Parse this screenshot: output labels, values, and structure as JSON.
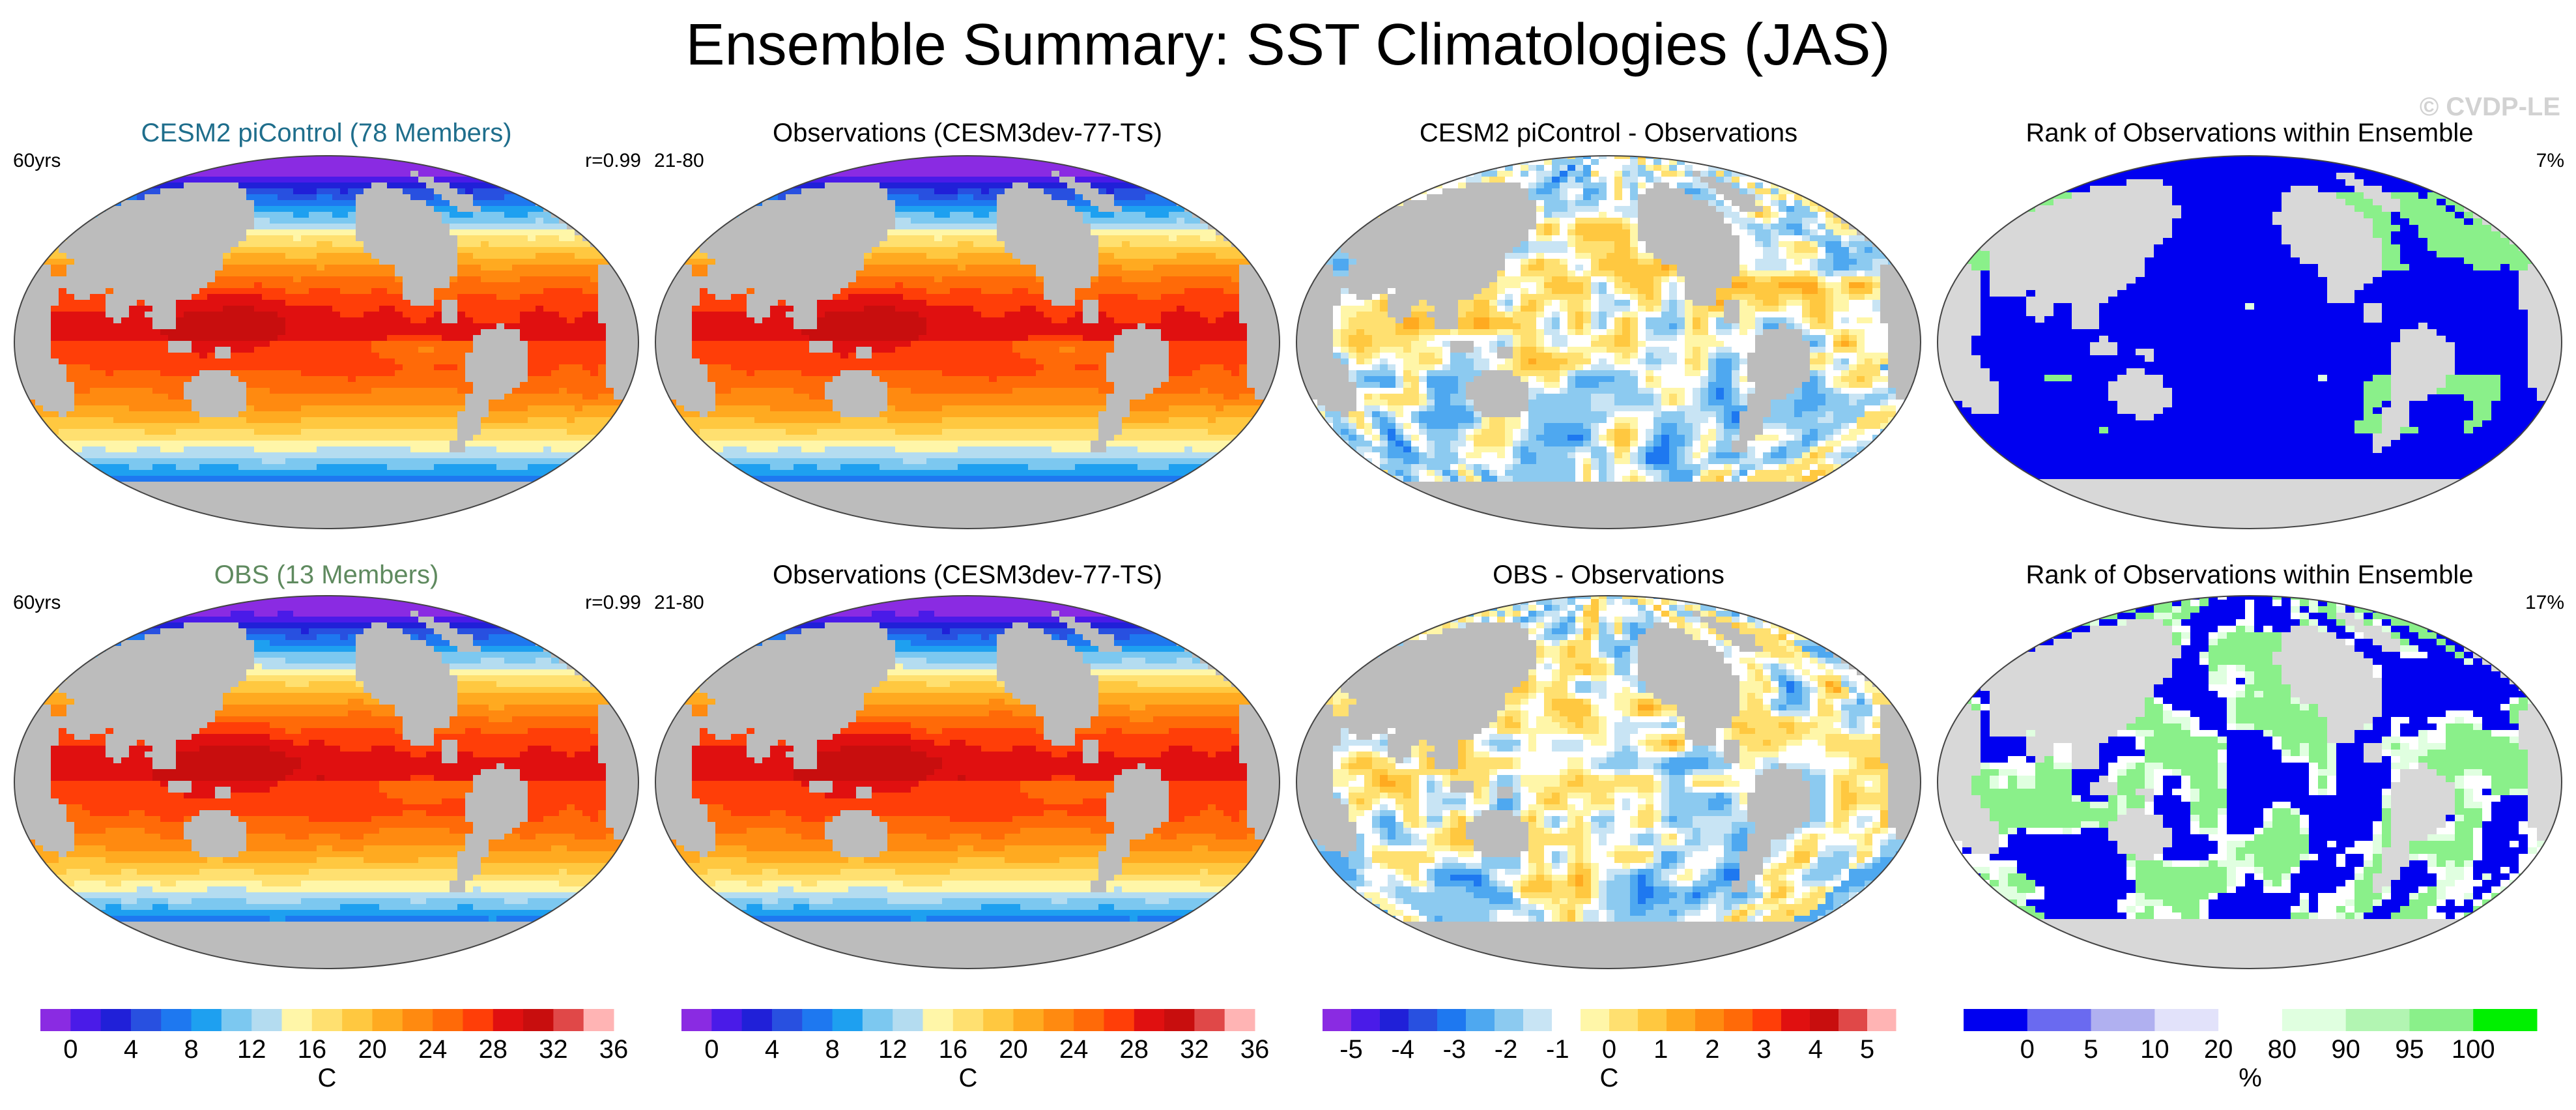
{
  "title": "Ensemble Summary: SST Climatologies (JAS)",
  "watermark": "© CVDP-LE",
  "palettes": {
    "sst": [
      "#8a2be2",
      "#4a1be8",
      "#2020d8",
      "#2850e0",
      "#1e78f0",
      "#1ea0f0",
      "#7cc8f0",
      "#b4dcf0",
      "#fff6a8",
      "#ffe070",
      "#ffc840",
      "#ffaa20",
      "#ff8a10",
      "#ff6a08",
      "#ff3e08",
      "#e01010",
      "#c80e0e",
      "#e04848",
      "#ffb4b4"
    ],
    "diff": [
      "#8a2be2",
      "#4a1be8",
      "#2020d8",
      "#2850e0",
      "#1e78f0",
      "#4ea8f0",
      "#8ccaf0",
      "#c8e4f4",
      "#ffffff",
      "#fff6a8",
      "#ffe070",
      "#ffc840",
      "#ffaa20",
      "#ff8a10",
      "#ff6a08",
      "#ff3e08",
      "#e01010",
      "#c80e0e",
      "#e04848",
      "#ffb4b4"
    ],
    "rank": [
      "#0000f0",
      "#6a6af0",
      "#b0b0f0",
      "#e2e2fa",
      "#ffffff",
      "#e0ffe0",
      "#b2f5b2",
      "#8af08a",
      "#00f000"
    ]
  },
  "panels": [
    {
      "title": "CESM2 piControl (78 Members)",
      "title_color": "#1f6e8c",
      "left_text": "60yrs",
      "right_text": "r=0.99",
      "kind": "sst"
    },
    {
      "title": "Observations (CESM3dev-77-TS)",
      "title_color": "#000000",
      "left_text": "21-80",
      "right_text": "",
      "kind": "sst"
    },
    {
      "title": "CESM2 piControl - Observations",
      "title_color": "#000000",
      "left_text": "",
      "right_text": "",
      "kind": "diff"
    },
    {
      "title": "Rank of Observations within Ensemble",
      "title_color": "#000000",
      "left_text": "",
      "right_text": "7%",
      "kind": "rank"
    },
    {
      "title": "OBS (13 Members)",
      "title_color": "#5f8a5f",
      "left_text": "60yrs",
      "right_text": "r=0.99",
      "kind": "sst"
    },
    {
      "title": "Observations (CESM3dev-77-TS)",
      "title_color": "#000000",
      "left_text": "21-80",
      "right_text": "",
      "kind": "sst"
    },
    {
      "title": "OBS - Observations",
      "title_color": "#000000",
      "left_text": "",
      "right_text": "",
      "kind": "diff"
    },
    {
      "title": "Rank of Observations within Ensemble",
      "title_color": "#000000",
      "left_text": "",
      "right_text": "17%",
      "kind": "rank"
    }
  ],
  "colorbars": [
    {
      "kind": "sst",
      "units": "C",
      "ticks": [
        "0",
        "4",
        "8",
        "12",
        "16",
        "20",
        "24",
        "28",
        "32",
        "36"
      ]
    },
    {
      "kind": "sst",
      "units": "C",
      "ticks": [
        "0",
        "4",
        "8",
        "12",
        "16",
        "20",
        "24",
        "28",
        "32",
        "36"
      ]
    },
    {
      "kind": "diff",
      "units": "C",
      "ticks": [
        "-5",
        "-4",
        "-3",
        "-2",
        "-1",
        "0",
        "1",
        "2",
        "3",
        "4",
        "5"
      ]
    },
    {
      "kind": "rank",
      "units": "%",
      "ticks": [
        "0",
        "5",
        "10",
        "20",
        "80",
        "90",
        "95",
        "100"
      ]
    }
  ],
  "chart_data": {
    "type": "heatmap",
    "title": "Ensemble Summary: SST Climatologies (JAS)",
    "units": {
      "sst": "C",
      "diff": "C",
      "rank": "%"
    },
    "sst_levels": [
      0,
      2,
      4,
      6,
      8,
      10,
      12,
      14,
      16,
      18,
      20,
      22,
      24,
      26,
      28,
      30,
      32,
      34,
      36
    ],
    "diff_levels": [
      -5,
      -4.5,
      -4,
      -3.5,
      -3,
      -2.5,
      -2,
      -1.5,
      -1,
      -0.5,
      0,
      0.5,
      1,
      1.5,
      2,
      2.5,
      3,
      3.5,
      4,
      4.5,
      5
    ],
    "rank_levels": [
      0,
      5,
      10,
      20,
      80,
      90,
      95,
      100
    ],
    "panels": [
      {
        "name": "CESM2 piControl (78 Members)",
        "years": "60yrs",
        "pattern_correlation": 0.99
      },
      {
        "name": "Observations (CESM3dev-77-TS)",
        "years": "21-80"
      },
      {
        "name": "CESM2 piControl - Observations"
      },
      {
        "name": "Rank of Observations within Ensemble",
        "percent": 7
      },
      {
        "name": "OBS (13 Members)",
        "years": "60yrs",
        "pattern_correlation": 0.99
      },
      {
        "name": "Observations (CESM3dev-77-TS)",
        "years": "21-80"
      },
      {
        "name": "OBS - Observations"
      },
      {
        "name": "Rank of Observations within Ensemble",
        "percent": 17
      }
    ]
  }
}
